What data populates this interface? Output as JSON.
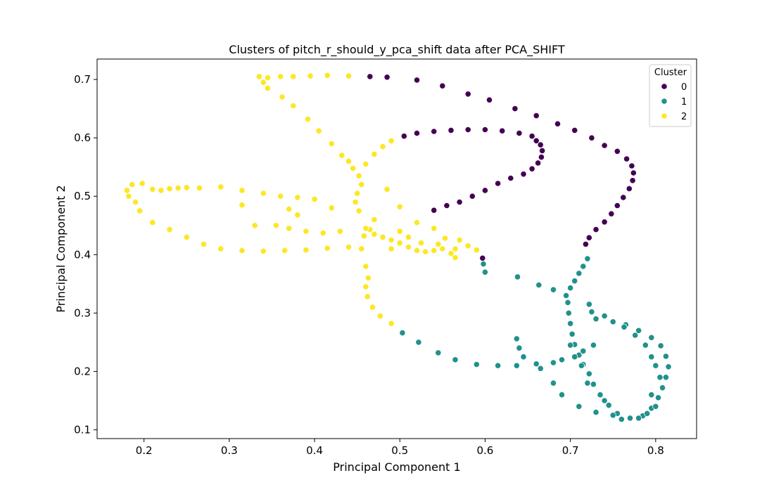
{
  "chart_data": {
    "type": "scatter",
    "title": "Clusters of pitch_r_should_y_pca_shift data after PCA_SHIFT",
    "xlabel": "Principal Component 1",
    "ylabel": "Principal Component 2",
    "xlim": [
      0.145,
      0.848
    ],
    "ylim": [
      0.085,
      0.735
    ],
    "xticks": [
      0.2,
      0.3,
      0.4,
      0.5,
      0.6,
      0.7,
      0.8
    ],
    "yticks": [
      0.1,
      0.2,
      0.3,
      0.4,
      0.5,
      0.6,
      0.7
    ],
    "xtick_labels": [
      "0.2",
      "0.3",
      "0.4",
      "0.5",
      "0.6",
      "0.7",
      "0.8"
    ],
    "ytick_labels": [
      "0.1",
      "0.2",
      "0.3",
      "0.4",
      "0.5",
      "0.6",
      "0.7"
    ],
    "grid": false,
    "legend": {
      "title": "Cluster",
      "placement": "top-right"
    },
    "series": [
      {
        "name": "0",
        "color": "#440154",
        "points": [
          [
            0.465,
            0.705
          ],
          [
            0.485,
            0.704
          ],
          [
            0.52,
            0.699
          ],
          [
            0.55,
            0.689
          ],
          [
            0.58,
            0.675
          ],
          [
            0.605,
            0.665
          ],
          [
            0.635,
            0.65
          ],
          [
            0.66,
            0.638
          ],
          [
            0.685,
            0.624
          ],
          [
            0.705,
            0.613
          ],
          [
            0.725,
            0.6
          ],
          [
            0.74,
            0.587
          ],
          [
            0.755,
            0.577
          ],
          [
            0.766,
            0.564
          ],
          [
            0.772,
            0.552
          ],
          [
            0.774,
            0.54
          ],
          [
            0.773,
            0.527
          ],
          [
            0.769,
            0.513
          ],
          [
            0.762,
            0.498
          ],
          [
            0.755,
            0.484
          ],
          [
            0.748,
            0.47
          ],
          [
            0.74,
            0.456
          ],
          [
            0.73,
            0.443
          ],
          [
            0.722,
            0.429
          ],
          [
            0.718,
            0.418
          ],
          [
            0.505,
            0.603
          ],
          [
            0.52,
            0.608
          ],
          [
            0.54,
            0.611
          ],
          [
            0.56,
            0.613
          ],
          [
            0.58,
            0.614
          ],
          [
            0.6,
            0.614
          ],
          [
            0.62,
            0.612
          ],
          [
            0.64,
            0.608
          ],
          [
            0.655,
            0.603
          ],
          [
            0.66,
            0.595
          ],
          [
            0.665,
            0.588
          ],
          [
            0.667,
            0.578
          ],
          [
            0.666,
            0.567
          ],
          [
            0.662,
            0.557
          ],
          [
            0.655,
            0.547
          ],
          [
            0.645,
            0.538
          ],
          [
            0.63,
            0.531
          ],
          [
            0.615,
            0.522
          ],
          [
            0.6,
            0.51
          ],
          [
            0.585,
            0.5
          ],
          [
            0.57,
            0.49
          ],
          [
            0.555,
            0.484
          ],
          [
            0.54,
            0.476
          ],
          [
            0.597,
            0.394
          ]
        ]
      },
      {
        "name": "1",
        "color": "#21918c",
        "points": [
          [
            0.598,
            0.384
          ],
          [
            0.6,
            0.37
          ],
          [
            0.638,
            0.362
          ],
          [
            0.663,
            0.348
          ],
          [
            0.68,
            0.34
          ],
          [
            0.695,
            0.33
          ],
          [
            0.7,
            0.343
          ],
          [
            0.705,
            0.355
          ],
          [
            0.71,
            0.368
          ],
          [
            0.715,
            0.38
          ],
          [
            0.72,
            0.393
          ],
          [
            0.697,
            0.318
          ],
          [
            0.698,
            0.3
          ],
          [
            0.7,
            0.282
          ],
          [
            0.702,
            0.264
          ],
          [
            0.705,
            0.246
          ],
          [
            0.71,
            0.228
          ],
          [
            0.715,
            0.212
          ],
          [
            0.722,
            0.196
          ],
          [
            0.727,
            0.178
          ],
          [
            0.735,
            0.16
          ],
          [
            0.745,
            0.142
          ],
          [
            0.755,
            0.128
          ],
          [
            0.77,
            0.12
          ],
          [
            0.785,
            0.124
          ],
          [
            0.795,
            0.137
          ],
          [
            0.803,
            0.155
          ],
          [
            0.808,
            0.172
          ],
          [
            0.812,
            0.19
          ],
          [
            0.815,
            0.208
          ],
          [
            0.812,
            0.226
          ],
          [
            0.806,
            0.244
          ],
          [
            0.795,
            0.258
          ],
          [
            0.78,
            0.27
          ],
          [
            0.765,
            0.28
          ],
          [
            0.75,
            0.285
          ],
          [
            0.73,
            0.29
          ],
          [
            0.725,
            0.302
          ],
          [
            0.722,
            0.315
          ],
          [
            0.74,
            0.295
          ],
          [
            0.727,
            0.245
          ],
          [
            0.715,
            0.235
          ],
          [
            0.705,
            0.225
          ],
          [
            0.69,
            0.22
          ],
          [
            0.68,
            0.215
          ],
          [
            0.665,
            0.205
          ],
          [
            0.66,
            0.213
          ],
          [
            0.645,
            0.225
          ],
          [
            0.64,
            0.24
          ],
          [
            0.637,
            0.256
          ],
          [
            0.637,
            0.21
          ],
          [
            0.615,
            0.21
          ],
          [
            0.59,
            0.212
          ],
          [
            0.565,
            0.22
          ],
          [
            0.545,
            0.232
          ],
          [
            0.522,
            0.25
          ],
          [
            0.503,
            0.266
          ],
          [
            0.68,
            0.18
          ],
          [
            0.69,
            0.16
          ],
          [
            0.71,
            0.14
          ],
          [
            0.73,
            0.13
          ],
          [
            0.76,
            0.118
          ],
          [
            0.78,
            0.12
          ],
          [
            0.79,
            0.128
          ],
          [
            0.8,
            0.14
          ],
          [
            0.805,
            0.19
          ],
          [
            0.8,
            0.21
          ],
          [
            0.795,
            0.225
          ],
          [
            0.788,
            0.245
          ],
          [
            0.776,
            0.262
          ],
          [
            0.763,
            0.276
          ],
          [
            0.7,
            0.245
          ],
          [
            0.713,
            0.21
          ],
          [
            0.72,
            0.18
          ],
          [
            0.74,
            0.15
          ],
          [
            0.75,
            0.125
          ],
          [
            0.795,
            0.16
          ]
        ]
      },
      {
        "name": "2",
        "color": "#fde725",
        "points": [
          [
            0.335,
            0.705
          ],
          [
            0.345,
            0.703
          ],
          [
            0.36,
            0.705
          ],
          [
            0.375,
            0.705
          ],
          [
            0.395,
            0.706
          ],
          [
            0.415,
            0.707
          ],
          [
            0.44,
            0.706
          ],
          [
            0.34,
            0.695
          ],
          [
            0.345,
            0.685
          ],
          [
            0.362,
            0.67
          ],
          [
            0.375,
            0.655
          ],
          [
            0.392,
            0.632
          ],
          [
            0.405,
            0.612
          ],
          [
            0.42,
            0.59
          ],
          [
            0.432,
            0.57
          ],
          [
            0.44,
            0.56
          ],
          [
            0.445,
            0.548
          ],
          [
            0.452,
            0.535
          ],
          [
            0.46,
            0.555
          ],
          [
            0.47,
            0.572
          ],
          [
            0.48,
            0.585
          ],
          [
            0.49,
            0.595
          ],
          [
            0.455,
            0.52
          ],
          [
            0.45,
            0.505
          ],
          [
            0.448,
            0.49
          ],
          [
            0.452,
            0.475
          ],
          [
            0.47,
            0.46
          ],
          [
            0.48,
            0.43
          ],
          [
            0.49,
            0.41
          ],
          [
            0.5,
            0.42
          ],
          [
            0.51,
            0.413
          ],
          [
            0.52,
            0.407
          ],
          [
            0.53,
            0.405
          ],
          [
            0.54,
            0.407
          ],
          [
            0.55,
            0.41
          ],
          [
            0.56,
            0.402
          ],
          [
            0.565,
            0.395
          ],
          [
            0.565,
            0.41
          ],
          [
            0.553,
            0.428
          ],
          [
            0.54,
            0.445
          ],
          [
            0.52,
            0.455
          ],
          [
            0.5,
            0.482
          ],
          [
            0.485,
            0.512
          ],
          [
            0.465,
            0.443
          ],
          [
            0.458,
            0.432
          ],
          [
            0.455,
            0.41
          ],
          [
            0.46,
            0.38
          ],
          [
            0.463,
            0.36
          ],
          [
            0.46,
            0.345
          ],
          [
            0.462,
            0.328
          ],
          [
            0.468,
            0.31
          ],
          [
            0.477,
            0.295
          ],
          [
            0.49,
            0.282
          ],
          [
            0.18,
            0.51
          ],
          [
            0.182,
            0.5
          ],
          [
            0.186,
            0.52
          ],
          [
            0.198,
            0.522
          ],
          [
            0.21,
            0.512
          ],
          [
            0.22,
            0.51
          ],
          [
            0.23,
            0.513
          ],
          [
            0.24,
            0.514
          ],
          [
            0.25,
            0.515
          ],
          [
            0.265,
            0.514
          ],
          [
            0.29,
            0.516
          ],
          [
            0.19,
            0.49
          ],
          [
            0.195,
            0.475
          ],
          [
            0.21,
            0.455
          ],
          [
            0.23,
            0.443
          ],
          [
            0.25,
            0.43
          ],
          [
            0.27,
            0.418
          ],
          [
            0.29,
            0.41
          ],
          [
            0.315,
            0.407
          ],
          [
            0.34,
            0.406
          ],
          [
            0.365,
            0.407
          ],
          [
            0.39,
            0.408
          ],
          [
            0.415,
            0.411
          ],
          [
            0.44,
            0.413
          ],
          [
            0.315,
            0.51
          ],
          [
            0.34,
            0.505
          ],
          [
            0.36,
            0.5
          ],
          [
            0.38,
            0.498
          ],
          [
            0.4,
            0.495
          ],
          [
            0.42,
            0.48
          ],
          [
            0.37,
            0.478
          ],
          [
            0.38,
            0.468
          ],
          [
            0.315,
            0.485
          ],
          [
            0.33,
            0.45
          ],
          [
            0.355,
            0.45
          ],
          [
            0.37,
            0.445
          ],
          [
            0.39,
            0.44
          ],
          [
            0.41,
            0.437
          ],
          [
            0.43,
            0.44
          ],
          [
            0.5,
            0.44
          ],
          [
            0.51,
            0.43
          ],
          [
            0.525,
            0.42
          ],
          [
            0.545,
            0.418
          ],
          [
            0.57,
            0.425
          ],
          [
            0.58,
            0.415
          ],
          [
            0.59,
            0.408
          ],
          [
            0.46,
            0.445
          ],
          [
            0.47,
            0.435
          ],
          [
            0.49,
            0.425
          ]
        ]
      }
    ]
  }
}
